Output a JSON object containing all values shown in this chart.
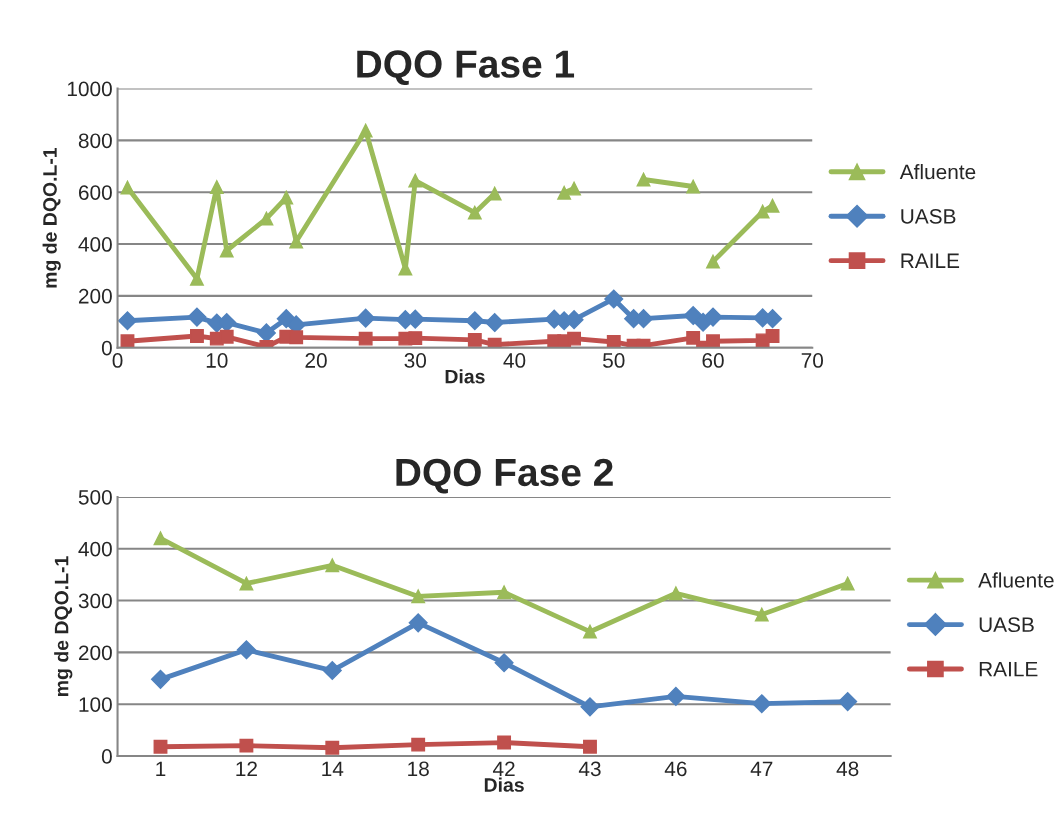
{
  "chart_data": [
    {
      "type": "line",
      "title": "DQO Fase 1",
      "xlabel": "Dias",
      "ylabel": "mg de DQO.L-1",
      "xlim": [
        0,
        70
      ],
      "xticks": [
        0,
        10,
        20,
        30,
        40,
        50,
        60,
        70
      ],
      "ylim": [
        0,
        1000
      ],
      "yticks": [
        0,
        200,
        400,
        600,
        800,
        1000
      ],
      "grid": "y",
      "legend": "right",
      "line_style": "solid",
      "series": [
        {
          "name": "Afluente",
          "color": "#9bbb59",
          "marker": "triangle",
          "x": [
            1,
            8,
            10,
            11,
            15,
            17,
            18,
            25,
            29,
            30,
            36,
            38,
            41,
            45,
            46,
            50,
            53,
            58,
            59,
            60,
            65,
            66
          ],
          "values": [
            618,
            266,
            620,
            375,
            498,
            579,
            410,
            838,
            305,
            645,
            521,
            595,
            null,
            598,
            614,
            null,
            649,
            622,
            null,
            332,
            525,
            548
          ]
        },
        {
          "name": "UASB",
          "color": "#4f81bd",
          "marker": "diamond",
          "x": [
            1,
            8,
            10,
            11,
            15,
            17,
            18,
            25,
            29,
            30,
            36,
            38,
            44,
            45,
            46,
            50,
            52,
            53,
            58,
            59,
            60,
            65,
            66
          ],
          "values": [
            104,
            118,
            95,
            97,
            57,
            112,
            88,
            114,
            108,
            110,
            104,
            97,
            110,
            104,
            108,
            188,
            112,
            112,
            124,
            98,
            118,
            115,
            112
          ]
        },
        {
          "name": "RAILE",
          "color": "#c0504d",
          "marker": "square",
          "x": [
            1,
            8,
            10,
            11,
            15,
            17,
            18,
            25,
            29,
            30,
            36,
            38,
            44,
            45,
            46,
            50,
            52,
            53,
            58,
            59,
            60,
            65,
            66
          ],
          "values": [
            25,
            45,
            35,
            42,
            3,
            42,
            40,
            35,
            35,
            37,
            30,
            12,
            25,
            25,
            35,
            22,
            8,
            8,
            38,
            0,
            25,
            28,
            45
          ]
        }
      ]
    },
    {
      "type": "line",
      "title": "DQO Fase 2",
      "xlabel": "Dias",
      "ylabel": "mg de DQO.L-1",
      "categories": [
        "1",
        "12",
        "14",
        "18",
        "42",
        "43",
        "46",
        "47",
        "48"
      ],
      "ylim": [
        0,
        500
      ],
      "yticks": [
        0,
        100,
        200,
        300,
        400,
        500
      ],
      "grid": "y",
      "legend": "right",
      "line_style": "solid",
      "series": [
        {
          "name": "Afluente",
          "color": "#9bbb59",
          "marker": "triangle",
          "values": [
            420,
            333,
            368,
            308,
            316,
            240,
            314,
            273,
            333
          ]
        },
        {
          "name": "UASB",
          "color": "#4f81bd",
          "marker": "diamond",
          "values": [
            148,
            205,
            165,
            257,
            180,
            95,
            115,
            101,
            105
          ]
        },
        {
          "name": "RAILE",
          "color": "#c0504d",
          "marker": "square",
          "values": [
            18,
            20,
            16,
            22,
            26,
            18,
            null,
            null,
            null
          ]
        }
      ]
    }
  ]
}
